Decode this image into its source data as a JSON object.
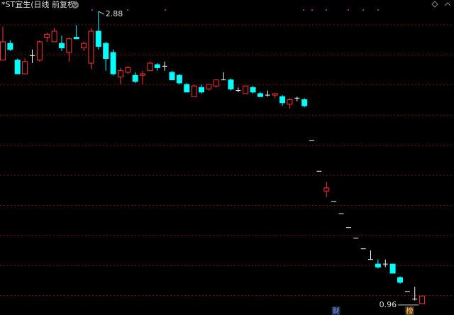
{
  "chart_data": {
    "type": "candlestick",
    "title": "*ST宜生(日线 前复权)",
    "up_color": "#ff3232",
    "down_color": "#00ffff",
    "flat_color": "#ffffff",
    "open": [
      2.56,
      2.67,
      2.56,
      2.47,
      2.59,
      2.56,
      2.71,
      2.68,
      2.67,
      2.61,
      2.71,
      2.64,
      2.54,
      2.75,
      2.67,
      2.61,
      2.45,
      2.48,
      2.46,
      2.46,
      2.49,
      2.53,
      2.52,
      2.48,
      2.46,
      2.4,
      2.32,
      2.38,
      2.37,
      2.39,
      2.43,
      2.43,
      2.36,
      2.34,
      2.38,
      2.34,
      2.33,
      2.33,
      2.32,
      2.27,
      2.31,
      2.3,
      2.03,
      1.83,
      1.7,
      1.63,
      1.55,
      1.46,
      1.39,
      1.32,
      1.25,
      1.22,
      1.22,
      1.22,
      1.13,
      1.04,
      0.99,
      0.96
    ],
    "high": [
      2.78,
      2.69,
      2.57,
      2.57,
      2.63,
      2.69,
      2.74,
      2.77,
      2.72,
      2.71,
      2.79,
      2.68,
      2.77,
      2.88,
      2.68,
      2.63,
      2.51,
      2.52,
      2.48,
      2.49,
      2.55,
      2.54,
      2.55,
      2.49,
      2.47,
      2.41,
      2.4,
      2.4,
      2.4,
      2.43,
      2.48,
      2.44,
      2.38,
      2.39,
      2.39,
      2.35,
      2.36,
      2.34,
      2.33,
      2.31,
      2.32,
      2.31,
      2.03,
      1.83,
      1.76,
      1.63,
      1.55,
      1.46,
      1.39,
      1.32,
      1.31,
      1.25,
      1.25,
      1.22,
      1.14,
      1.04,
      1.07,
      1.01
    ],
    "low": [
      2.56,
      2.62,
      2.47,
      2.47,
      2.54,
      2.55,
      2.68,
      2.68,
      2.62,
      2.55,
      2.7,
      2.62,
      2.5,
      2.63,
      2.49,
      2.46,
      2.4,
      2.47,
      2.41,
      2.4,
      2.49,
      2.49,
      2.49,
      2.43,
      2.4,
      2.35,
      2.32,
      2.34,
      2.36,
      2.38,
      2.43,
      2.36,
      2.35,
      2.34,
      2.34,
      2.32,
      2.32,
      2.31,
      2.26,
      2.24,
      2.29,
      2.25,
      2.03,
      1.83,
      1.66,
      1.63,
      1.55,
      1.46,
      1.39,
      1.32,
      1.25,
      1.19,
      1.2,
      1.16,
      1.09,
      1.04,
      0.98,
      0.96
    ],
    "close": [
      2.68,
      2.63,
      2.47,
      2.55,
      2.59,
      2.68,
      2.73,
      2.75,
      2.64,
      2.7,
      2.7,
      2.67,
      2.75,
      2.65,
      2.57,
      2.47,
      2.49,
      2.51,
      2.42,
      2.47,
      2.54,
      2.51,
      2.52,
      2.43,
      2.41,
      2.35,
      2.39,
      2.35,
      2.4,
      2.43,
      2.43,
      2.37,
      2.36,
      2.39,
      2.35,
      2.32,
      2.33,
      2.34,
      2.28,
      2.3,
      2.31,
      2.26,
      2.03,
      1.83,
      1.72,
      1.63,
      1.55,
      1.46,
      1.39,
      1.32,
      1.25,
      1.2,
      1.22,
      1.16,
      1.1,
      1.04,
      0.99,
      1.01
    ],
    "ylim": [
      0.885,
      2.955
    ],
    "high_label": 2.88,
    "low_label": 0.96,
    "events": [
      {
        "label": "财",
        "index": 45
      },
      {
        "label": "榜",
        "index": 55
      }
    ]
  }
}
